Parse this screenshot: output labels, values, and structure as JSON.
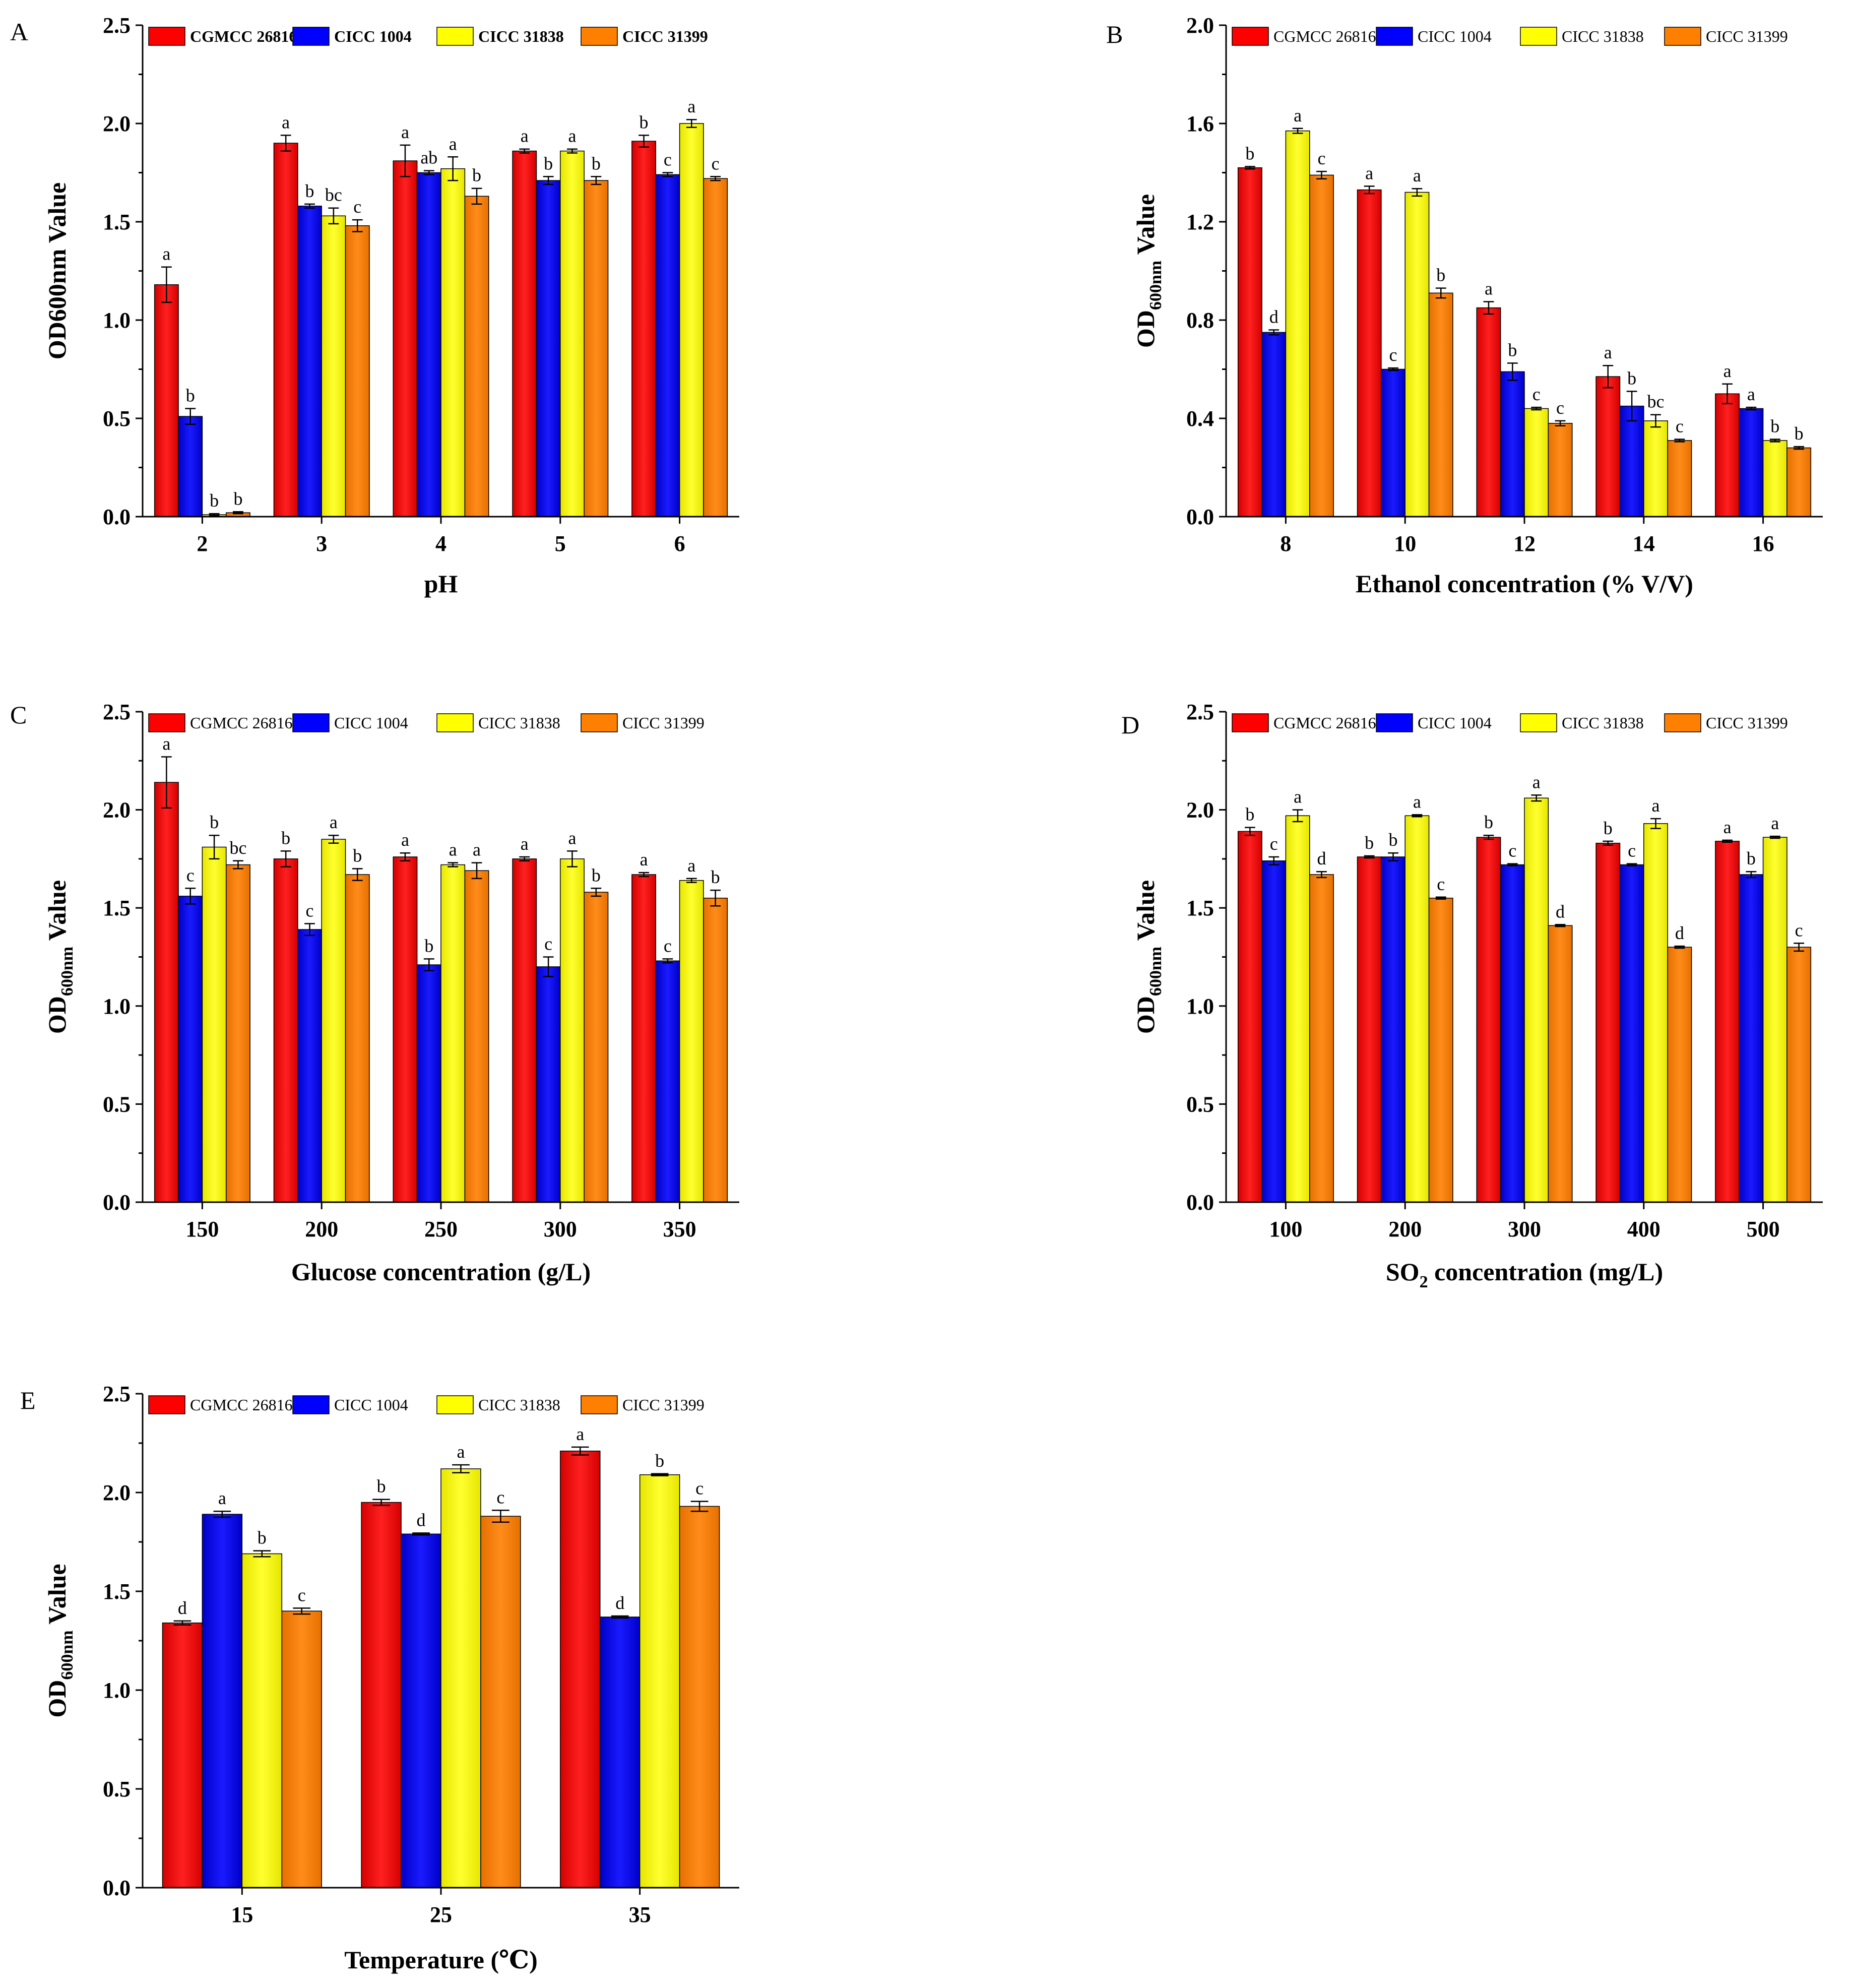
{
  "series_style": [
    {
      "name": "CGMCC 26816",
      "color": "#ff0000"
    },
    {
      "name": "CICC 1004",
      "color": "#0000ff"
    },
    {
      "name": "CICC 31838",
      "color": "#ffff00"
    },
    {
      "name": "CICC 31399",
      "color": "#ff8000"
    }
  ],
  "chart_data": [
    {
      "panel": "A",
      "type": "bar",
      "xlabel": "pH",
      "ylabel": "OD600nm Value",
      "ylabel_style": "plain",
      "legend_bold": true,
      "legend_placement": "top",
      "ylim": [
        0,
        2.5
      ],
      "yticks": [
        "0.0",
        "0.5",
        "1.0",
        "1.5",
        "2.0",
        "2.5"
      ],
      "grid": false,
      "categories": [
        "2",
        "3",
        "4",
        "5",
        "6"
      ],
      "series": [
        {
          "name": "CGMCC 26816",
          "values": [
            1.18,
            1.9,
            1.81,
            1.86,
            1.91
          ],
          "errors": [
            0.09,
            0.04,
            0.08,
            0.01,
            0.03
          ],
          "labels": [
            "a",
            "a",
            "a",
            "a",
            "b"
          ]
        },
        {
          "name": "CICC 1004",
          "values": [
            0.51,
            1.58,
            1.75,
            1.71,
            1.74
          ],
          "errors": [
            0.04,
            0.01,
            0.01,
            0.02,
            0.01
          ],
          "labels": [
            "b",
            "b",
            "ab",
            "b",
            "c"
          ]
        },
        {
          "name": "CICC 31838",
          "values": [
            0.01,
            1.53,
            1.77,
            1.86,
            2.0
          ],
          "errors": [
            0.005,
            0.04,
            0.06,
            0.01,
            0.02
          ],
          "labels": [
            "b",
            "bc",
            "a",
            "a",
            "a"
          ]
        },
        {
          "name": "CICC 31399",
          "values": [
            0.02,
            1.48,
            1.63,
            1.71,
            1.72
          ],
          "errors": [
            0.005,
            0.03,
            0.04,
            0.02,
            0.01
          ],
          "labels": [
            "b",
            "c",
            "b",
            "b",
            "c"
          ]
        }
      ]
    },
    {
      "panel": "B",
      "type": "bar",
      "xlabel": "Ethanol concentration (% V/V)",
      "ylabel": "OD600nm Value",
      "ylabel_style": "subscript",
      "ylabel_parts": [
        "OD",
        "600nm",
        " Value"
      ],
      "legend_bold": false,
      "legend_placement": "top",
      "ylim": [
        0,
        2.0
      ],
      "yticks": [
        "0.0",
        "0.4",
        "0.8",
        "1.2",
        "1.6",
        "2.0"
      ],
      "grid": false,
      "categories": [
        "8",
        "10",
        "12",
        "14",
        "16"
      ],
      "series": [
        {
          "name": "CGMCC 26816",
          "values": [
            1.42,
            1.33,
            0.85,
            0.57,
            0.5
          ],
          "errors": [
            0.005,
            0.015,
            0.025,
            0.045,
            0.04
          ],
          "labels": [
            "b",
            "a",
            "a",
            "a",
            "a"
          ]
        },
        {
          "name": "CICC 1004",
          "values": [
            0.75,
            0.6,
            0.59,
            0.45,
            0.44
          ],
          "errors": [
            0.01,
            0.005,
            0.035,
            0.06,
            0.005
          ],
          "labels": [
            "d",
            "c",
            "b",
            "b",
            "a"
          ]
        },
        {
          "name": "CICC 31838",
          "values": [
            1.57,
            1.32,
            0.44,
            0.39,
            0.31
          ],
          "errors": [
            0.01,
            0.015,
            0.005,
            0.025,
            0.005
          ],
          "labels": [
            "a",
            "a",
            "c",
            "bc",
            "b"
          ]
        },
        {
          "name": "CICC 31399",
          "values": [
            1.39,
            0.91,
            0.38,
            0.31,
            0.28
          ],
          "errors": [
            0.015,
            0.02,
            0.01,
            0.005,
            0.005
          ],
          "labels": [
            "c",
            "b",
            "c",
            "c",
            "b"
          ]
        }
      ]
    },
    {
      "panel": "C",
      "type": "bar",
      "xlabel": "Glucose concentration (g/L)",
      "ylabel": "OD600nm Value",
      "ylabel_style": "subscript",
      "ylabel_parts": [
        "OD",
        "600nm",
        " Value"
      ],
      "legend_bold": false,
      "legend_placement": "top",
      "ylim": [
        0,
        2.5
      ],
      "yticks": [
        "0.0",
        "0.5",
        "1.0",
        "1.5",
        "2.0",
        "2.5"
      ],
      "grid": false,
      "categories": [
        "150",
        "200",
        "250",
        "300",
        "350"
      ],
      "series": [
        {
          "name": "CGMCC 26816",
          "values": [
            2.14,
            1.75,
            1.76,
            1.75,
            1.67
          ],
          "errors": [
            0.13,
            0.04,
            0.02,
            0.01,
            0.01
          ],
          "labels": [
            "a",
            "b",
            "a",
            "a",
            "a"
          ]
        },
        {
          "name": "CICC 1004",
          "values": [
            1.56,
            1.39,
            1.21,
            1.2,
            1.23
          ],
          "errors": [
            0.04,
            0.03,
            0.03,
            0.05,
            0.01
          ],
          "labels": [
            "c",
            "c",
            "b",
            "c",
            "c"
          ]
        },
        {
          "name": "CICC 31838",
          "values": [
            1.81,
            1.85,
            1.72,
            1.75,
            1.64
          ],
          "errors": [
            0.06,
            0.02,
            0.01,
            0.04,
            0.01
          ],
          "labels": [
            "b",
            "a",
            "a",
            "a",
            "a"
          ]
        },
        {
          "name": "CICC 31399",
          "values": [
            1.72,
            1.67,
            1.69,
            1.58,
            1.55
          ],
          "errors": [
            0.02,
            0.03,
            0.04,
            0.02,
            0.04
          ],
          "labels": [
            "bc",
            "b",
            "a",
            "b",
            "b"
          ]
        }
      ]
    },
    {
      "panel": "D",
      "type": "bar",
      "xlabel": "SO2 concentration (mg/L)",
      "xlabel_parts": [
        "SO",
        "2",
        " concentration (mg/L)"
      ],
      "ylabel": "OD600nm Value",
      "ylabel_style": "subscript",
      "ylabel_parts": [
        "OD",
        "600nm",
        " Value"
      ],
      "legend_bold": false,
      "legend_placement": "top",
      "ylim": [
        0,
        2.5
      ],
      "yticks": [
        "0.0",
        "0.5",
        "1.0",
        "1.5",
        "2.0",
        "2.5"
      ],
      "grid": false,
      "categories": [
        "100",
        "200",
        "300",
        "400",
        "500"
      ],
      "series": [
        {
          "name": "CGMCC 26816",
          "values": [
            1.89,
            1.76,
            1.86,
            1.83,
            1.84
          ],
          "errors": [
            0.02,
            0.005,
            0.01,
            0.01,
            0.005
          ],
          "labels": [
            "b",
            "b",
            "b",
            "b",
            "a"
          ]
        },
        {
          "name": "CICC 1004",
          "values": [
            1.74,
            1.76,
            1.72,
            1.72,
            1.67
          ],
          "errors": [
            0.02,
            0.02,
            0.005,
            0.005,
            0.015
          ],
          "labels": [
            "c",
            "b",
            "c",
            "c",
            "b"
          ]
        },
        {
          "name": "CICC 31838",
          "values": [
            1.97,
            1.97,
            2.06,
            1.93,
            1.86
          ],
          "errors": [
            0.03,
            0.005,
            0.015,
            0.025,
            0.005
          ],
          "labels": [
            "a",
            "a",
            "a",
            "a",
            "a"
          ]
        },
        {
          "name": "CICC 31399",
          "values": [
            1.67,
            1.55,
            1.41,
            1.3,
            1.3
          ],
          "errors": [
            0.015,
            0.005,
            0.005,
            0.005,
            0.02
          ],
          "labels": [
            "d",
            "c",
            "d",
            "d",
            "c"
          ]
        }
      ]
    },
    {
      "panel": "E",
      "type": "bar",
      "xlabel": "Temperature (℃)",
      "ylabel": "OD600nm Value",
      "ylabel_style": "subscript",
      "ylabel_parts": [
        "OD",
        "600nm",
        " Value"
      ],
      "legend_bold": false,
      "legend_placement": "top",
      "ylim": [
        0,
        2.5
      ],
      "yticks": [
        "0.0",
        "0.5",
        "1.0",
        "1.5",
        "2.0",
        "2.5"
      ],
      "grid": false,
      "categories": [
        "15",
        "25",
        "35"
      ],
      "series": [
        {
          "name": "CGMCC 26816",
          "values": [
            1.34,
            1.95,
            2.21
          ],
          "errors": [
            0.01,
            0.015,
            0.02
          ],
          "labels": [
            "d",
            "b",
            "a"
          ]
        },
        {
          "name": "CICC 1004",
          "values": [
            1.89,
            1.79,
            1.37
          ],
          "errors": [
            0.015,
            0.005,
            0.005
          ],
          "labels": [
            "a",
            "d",
            "d"
          ]
        },
        {
          "name": "CICC 31838",
          "values": [
            1.69,
            2.12,
            2.09
          ],
          "errors": [
            0.015,
            0.02,
            0.005
          ],
          "labels": [
            "b",
            "a",
            "b"
          ]
        },
        {
          "name": "CICC 31399",
          "values": [
            1.4,
            1.88,
            1.93
          ],
          "errors": [
            0.015,
            0.03,
            0.025
          ],
          "labels": [
            "c",
            "c",
            "c"
          ]
        }
      ]
    }
  ]
}
